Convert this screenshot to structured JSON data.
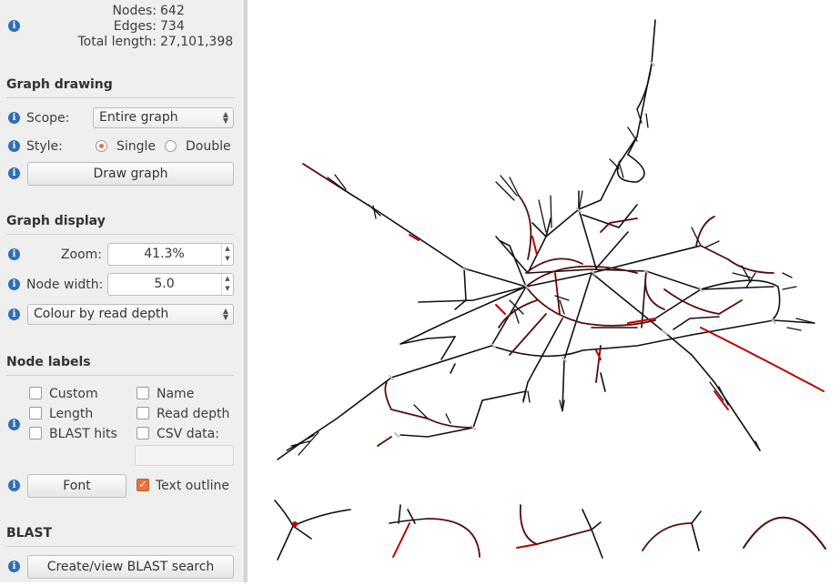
{
  "stats": {
    "nodes_label": "Nodes:",
    "nodes_value": "642",
    "edges_label": "Edges:",
    "edges_value": "734",
    "length_label": "Total length:",
    "length_value": "27,101,398"
  },
  "graph_drawing": {
    "title": "Graph drawing",
    "scope_label": "Scope:",
    "scope_value": "Entire graph",
    "style_label": "Style:",
    "style_single": "Single",
    "style_double": "Double",
    "draw_button": "Draw graph"
  },
  "graph_display": {
    "title": "Graph display",
    "zoom_label": "Zoom:",
    "zoom_value": "41.3%",
    "node_width_label": "Node width:",
    "node_width_value": "5.0",
    "colour_value": "Colour by read depth"
  },
  "node_labels": {
    "title": "Node labels",
    "custom": "Custom",
    "name": "Name",
    "length": "Length",
    "read_depth": "Read depth",
    "blast_hits": "BLAST hits",
    "csv_data": "CSV data:",
    "font_button": "Font",
    "text_outline": "Text outline"
  },
  "blast": {
    "title": "BLAST",
    "create_button": "Create/view BLAST search"
  },
  "colors": {
    "accent": "#e8733c",
    "info": "#2f6fb5",
    "edge_dark": "#111111",
    "edge_red": "#c00000",
    "edge_maroon": "#5a0a0a"
  }
}
